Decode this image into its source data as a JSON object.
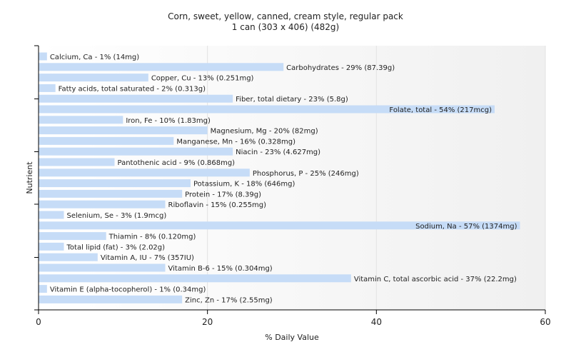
{
  "chart_data": {
    "type": "bar",
    "orientation": "horizontal",
    "title": "Corn, sweet, yellow, canned, cream style, regular pack",
    "subtitle": "1 can (303 x 406) (482g)",
    "xlabel": "% Daily Value",
    "ylabel": "Nutrient",
    "xlim": [
      0,
      60
    ],
    "xticks": [
      "0",
      "20",
      "40",
      "60"
    ],
    "grid": true,
    "bar_color": "#c6dcf7",
    "categories": [
      "Calcium, Ca",
      "Carbohydrates",
      "Copper, Cu",
      "Fatty acids, total saturated",
      "Fiber, total dietary",
      "Folate, total",
      "Iron, Fe",
      "Magnesium, Mg",
      "Manganese, Mn",
      "Niacin",
      "Pantothenic acid",
      "Phosphorus, P",
      "Potassium, K",
      "Protein",
      "Riboflavin",
      "Selenium, Se",
      "Sodium, Na",
      "Thiamin",
      "Total lipid (fat)",
      "Vitamin A, IU",
      "Vitamin B-6",
      "Vitamin C, total ascorbic acid",
      "Vitamin E (alpha-tocopherol)",
      "Zinc, Zn"
    ],
    "values": [
      1,
      29,
      13,
      2,
      23,
      54,
      10,
      20,
      16,
      23,
      9,
      25,
      18,
      17,
      15,
      3,
      57,
      8,
      3,
      7,
      15,
      37,
      1,
      17
    ],
    "labels": [
      "Calcium, Ca - 1% (14mg)",
      "Carbohydrates - 29% (87.39g)",
      "Copper, Cu - 13% (0.251mg)",
      "Fatty acids, total saturated - 2% (0.313g)",
      "Fiber, total dietary - 23% (5.8g)",
      "Folate, total - 54% (217mcg)",
      "Iron, Fe - 10% (1.83mg)",
      "Magnesium, Mg - 20% (82mg)",
      "Manganese, Mn - 16% (0.328mg)",
      "Niacin - 23% (4.627mg)",
      "Pantothenic acid - 9% (0.868mg)",
      "Phosphorus, P - 25% (246mg)",
      "Potassium, K - 18% (646mg)",
      "Protein - 17% (8.39g)",
      "Riboflavin - 15% (0.255mg)",
      "Selenium, Se - 3% (1.9mcg)",
      "Sodium, Na - 57% (1374mg)",
      "Thiamin - 8% (0.120mg)",
      "Total lipid (fat) - 3% (2.02g)",
      "Vitamin A, IU - 7% (357IU)",
      "Vitamin B-6 - 15% (0.304mg)",
      "Vitamin C, total ascorbic acid - 37% (22.2mg)",
      "Vitamin E (alpha-tocopherol) - 1% (0.34mg)",
      "Zinc, Zn - 17% (2.55mg)"
    ]
  }
}
